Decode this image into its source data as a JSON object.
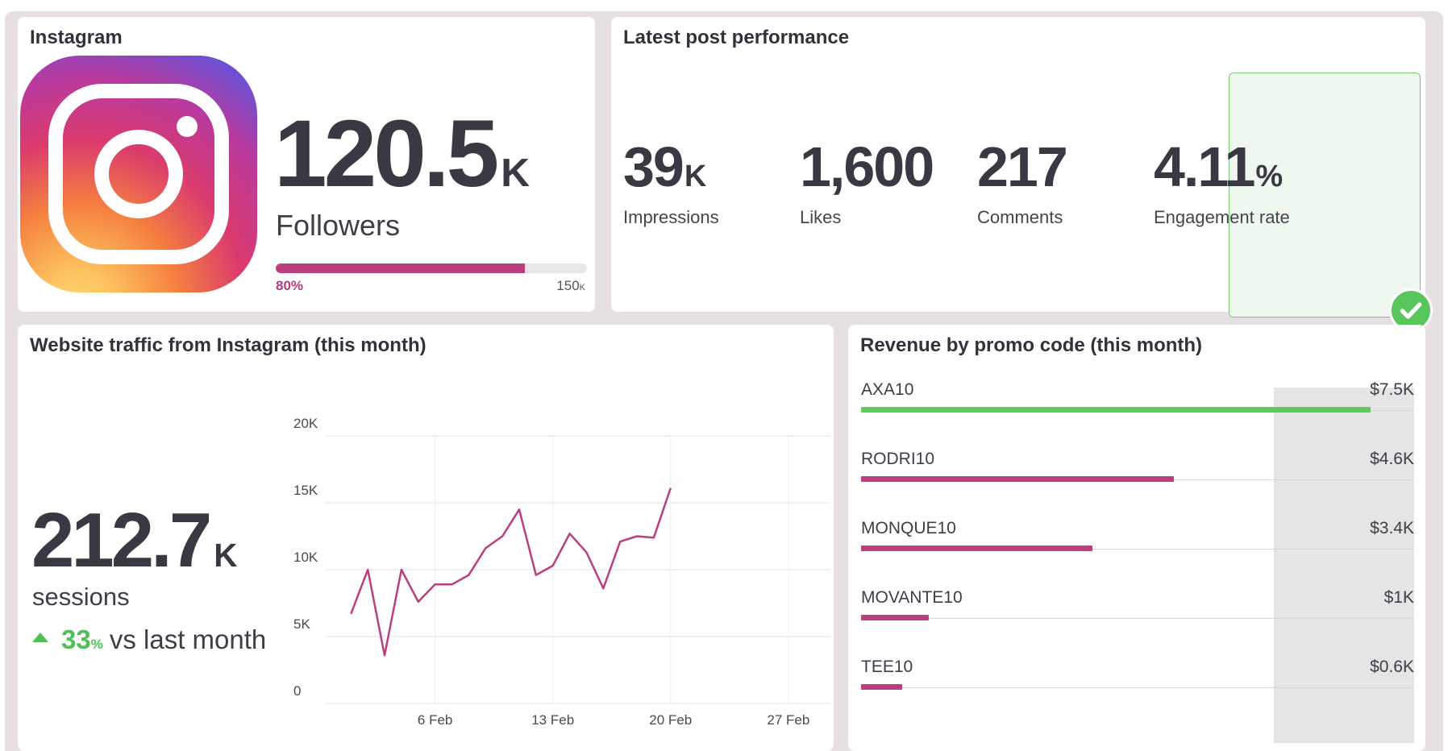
{
  "colors": {
    "accent": "#bb3e7f",
    "positive": "#4fbf56",
    "frame": "#e6e0e2",
    "text": "#393843"
  },
  "instagram": {
    "title": "Instagram",
    "logo_icon": "instagram-logo-icon",
    "followers_value": "120.5",
    "followers_unit": "K",
    "followers_label": "Followers",
    "progress_percent_label": "80%",
    "progress_fraction": 0.8,
    "progress_target": "150",
    "progress_target_unit": "K"
  },
  "post": {
    "title": "Latest post performance",
    "metrics": [
      {
        "value": "39",
        "unit": "K",
        "label": "Impressions"
      },
      {
        "value": "1,600",
        "unit": "",
        "label": "Likes"
      },
      {
        "value": "217",
        "unit": "",
        "label": "Comments"
      },
      {
        "value": "4.11",
        "unit": "%",
        "label": "Engagement rate",
        "highlight": true
      }
    ],
    "check_icon": "checkmark-icon"
  },
  "traffic": {
    "title": "Website traffic from Instagram (this month)",
    "sessions_value": "212.7",
    "sessions_unit": "K",
    "sessions_label": "sessions",
    "delta_icon": "triangle-up-icon",
    "delta_value": "33",
    "delta_unit": "%",
    "delta_text": "vs last month"
  },
  "chart_data": {
    "type": "line",
    "title": "",
    "xlabel": "",
    "ylabel": "",
    "ylim": [
      0,
      20000
    ],
    "yticks": [
      0,
      5000,
      10000,
      15000,
      20000
    ],
    "ytick_labels": [
      "0",
      "5K",
      "10K",
      "15K",
      "20K"
    ],
    "xtick_labels": [
      "6 Feb",
      "13 Feb",
      "20 Feb",
      "27 Feb"
    ],
    "xtick_days": [
      6,
      13,
      20,
      27
    ],
    "xlim_days": [
      -0.5,
      29.5
    ],
    "grid": true,
    "series": [
      {
        "color": "#bb3e7f",
        "x_days": [
          1,
          2,
          3,
          4,
          5,
          6,
          7,
          8,
          9,
          10,
          11,
          12,
          13,
          14,
          15,
          16,
          17,
          18,
          19,
          20,
          21
        ],
        "values": [
          6700,
          10000,
          3600,
          10000,
          7600,
          8900,
          8900,
          9600,
          11600,
          12500,
          14500,
          9600,
          10300,
          12700,
          11300,
          8600,
          12100,
          12500,
          12400,
          16100,
          null
        ]
      }
    ]
  },
  "revenue": {
    "title": "Revenue by promo code (this month)",
    "max": 7.5,
    "rows": [
      {
        "code": "AXA10",
        "amount": "$7.5K",
        "value": 7.5,
        "color": "#5ccc5c"
      },
      {
        "code": "RODRI10",
        "amount": "$4.6K",
        "value": 4.6,
        "color": "#bb3e7f"
      },
      {
        "code": "MONQUE10",
        "amount": "$3.4K",
        "value": 3.4,
        "color": "#bb3e7f"
      },
      {
        "code": "MOVANTE10",
        "amount": "$1K",
        "value": 1.0,
        "color": "#bb3e7f"
      },
      {
        "code": "TEE10",
        "amount": "$0.6K",
        "value": 0.6,
        "color": "#bb3e7f"
      }
    ]
  }
}
